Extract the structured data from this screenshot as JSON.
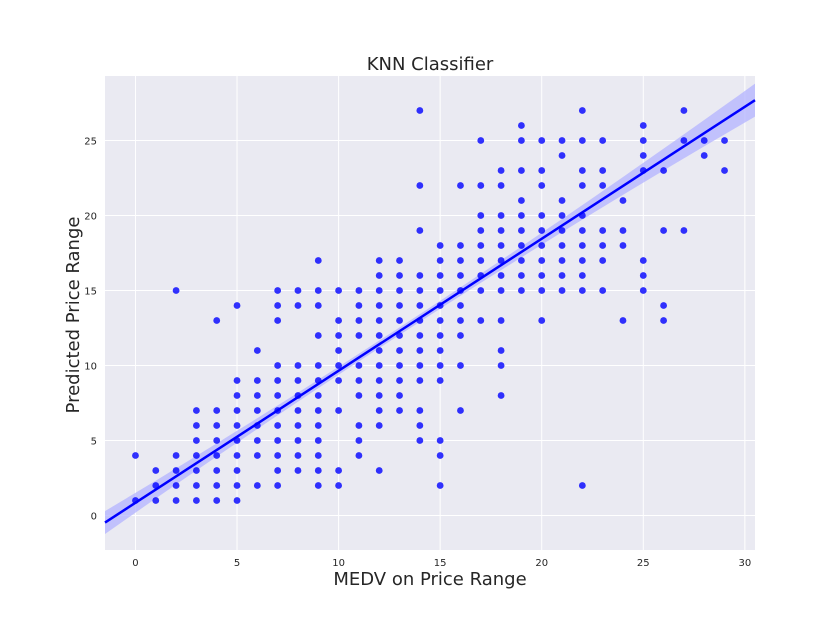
{
  "chart_data": {
    "type": "scatter",
    "title": "KNN Classifier",
    "xlabel": "MEDV on Price Range",
    "ylabel": "Predicted Price Range",
    "xlim": [
      -1.5,
      30.5
    ],
    "ylim": [
      -2.3,
      29.3
    ],
    "xticks": [
      0,
      5,
      10,
      15,
      20,
      25,
      30
    ],
    "yticks": [
      0,
      5,
      10,
      15,
      20,
      25
    ],
    "grid": true,
    "point_color": "#0000ff",
    "line_color": "#0000ff",
    "band_color": "#b3b3ff",
    "background": "#eaeaf2",
    "regression": {
      "slope": 0.88,
      "intercept": 0.85,
      "ci_halfwidth_at_ends": 1.1,
      "ci_halfwidth_center": 0.25,
      "x_center": 12.5
    },
    "points": [
      [
        0,
        1
      ],
      [
        0,
        4
      ],
      [
        1,
        1
      ],
      [
        1,
        2
      ],
      [
        1,
        3
      ],
      [
        2,
        1
      ],
      [
        2,
        2
      ],
      [
        2,
        3
      ],
      [
        2,
        4
      ],
      [
        2,
        15
      ],
      [
        3,
        1
      ],
      [
        3,
        2
      ],
      [
        3,
        3
      ],
      [
        3,
        4
      ],
      [
        3,
        5
      ],
      [
        3,
        6
      ],
      [
        3,
        7
      ],
      [
        4,
        1
      ],
      [
        4,
        2
      ],
      [
        4,
        3
      ],
      [
        4,
        4
      ],
      [
        4,
        5
      ],
      [
        4,
        6
      ],
      [
        4,
        7
      ],
      [
        4,
        13
      ],
      [
        5,
        1
      ],
      [
        5,
        2
      ],
      [
        5,
        3
      ],
      [
        5,
        4
      ],
      [
        5,
        5
      ],
      [
        5,
        6
      ],
      [
        5,
        7
      ],
      [
        5,
        8
      ],
      [
        5,
        9
      ],
      [
        5,
        14
      ],
      [
        6,
        2
      ],
      [
        6,
        4
      ],
      [
        6,
        5
      ],
      [
        6,
        6
      ],
      [
        6,
        7
      ],
      [
        6,
        8
      ],
      [
        6,
        9
      ],
      [
        6,
        11
      ],
      [
        7,
        2
      ],
      [
        7,
        3
      ],
      [
        7,
        4
      ],
      [
        7,
        5
      ],
      [
        7,
        6
      ],
      [
        7,
        7
      ],
      [
        7,
        8
      ],
      [
        7,
        9
      ],
      [
        7,
        10
      ],
      [
        7,
        13
      ],
      [
        7,
        14
      ],
      [
        7,
        15
      ],
      [
        8,
        3
      ],
      [
        8,
        4
      ],
      [
        8,
        5
      ],
      [
        8,
        6
      ],
      [
        8,
        7
      ],
      [
        8,
        8
      ],
      [
        8,
        9
      ],
      [
        8,
        10
      ],
      [
        8,
        14
      ],
      [
        8,
        15
      ],
      [
        9,
        2
      ],
      [
        9,
        3
      ],
      [
        9,
        4
      ],
      [
        9,
        5
      ],
      [
        9,
        6
      ],
      [
        9,
        7
      ],
      [
        9,
        8
      ],
      [
        9,
        9
      ],
      [
        9,
        10
      ],
      [
        9,
        12
      ],
      [
        9,
        14
      ],
      [
        9,
        15
      ],
      [
        9,
        17
      ],
      [
        10,
        2
      ],
      [
        10,
        3
      ],
      [
        10,
        7
      ],
      [
        10,
        9
      ],
      [
        10,
        10
      ],
      [
        10,
        11
      ],
      [
        10,
        12
      ],
      [
        10,
        13
      ],
      [
        10,
        15
      ],
      [
        11,
        4
      ],
      [
        11,
        5
      ],
      [
        11,
        6
      ],
      [
        11,
        8
      ],
      [
        11,
        9
      ],
      [
        11,
        10
      ],
      [
        11,
        12
      ],
      [
        11,
        13
      ],
      [
        11,
        14
      ],
      [
        11,
        15
      ],
      [
        12,
        3
      ],
      [
        12,
        6
      ],
      [
        12,
        7
      ],
      [
        12,
        8
      ],
      [
        12,
        9
      ],
      [
        12,
        10
      ],
      [
        12,
        11
      ],
      [
        12,
        12
      ],
      [
        12,
        13
      ],
      [
        12,
        14
      ],
      [
        12,
        15
      ],
      [
        12,
        16
      ],
      [
        12,
        17
      ],
      [
        13,
        7
      ],
      [
        13,
        8
      ],
      [
        13,
        9
      ],
      [
        13,
        10
      ],
      [
        13,
        11
      ],
      [
        13,
        12
      ],
      [
        13,
        13
      ],
      [
        13,
        14
      ],
      [
        13,
        15
      ],
      [
        13,
        16
      ],
      [
        13,
        17
      ],
      [
        14,
        5
      ],
      [
        14,
        6
      ],
      [
        14,
        7
      ],
      [
        14,
        9
      ],
      [
        14,
        10
      ],
      [
        14,
        11
      ],
      [
        14,
        12
      ],
      [
        14,
        13
      ],
      [
        14,
        14
      ],
      [
        14,
        15
      ],
      [
        14,
        16
      ],
      [
        14,
        19
      ],
      [
        14,
        22
      ],
      [
        14,
        27
      ],
      [
        15,
        2
      ],
      [
        15,
        4
      ],
      [
        15,
        5
      ],
      [
        15,
        9
      ],
      [
        15,
        10
      ],
      [
        15,
        11
      ],
      [
        15,
        12
      ],
      [
        15,
        13
      ],
      [
        15,
        14
      ],
      [
        15,
        15
      ],
      [
        15,
        16
      ],
      [
        15,
        17
      ],
      [
        15,
        18
      ],
      [
        16,
        7
      ],
      [
        16,
        10
      ],
      [
        16,
        12
      ],
      [
        16,
        13
      ],
      [
        16,
        14
      ],
      [
        16,
        15
      ],
      [
        16,
        16
      ],
      [
        16,
        17
      ],
      [
        16,
        18
      ],
      [
        16,
        22
      ],
      [
        17,
        13
      ],
      [
        17,
        15
      ],
      [
        17,
        16
      ],
      [
        17,
        17
      ],
      [
        17,
        18
      ],
      [
        17,
        19
      ],
      [
        17,
        20
      ],
      [
        17,
        22
      ],
      [
        17,
        25
      ],
      [
        18,
        8
      ],
      [
        18,
        10
      ],
      [
        18,
        11
      ],
      [
        18,
        13
      ],
      [
        18,
        15
      ],
      [
        18,
        16
      ],
      [
        18,
        17
      ],
      [
        18,
        18
      ],
      [
        18,
        19
      ],
      [
        18,
        20
      ],
      [
        18,
        22
      ],
      [
        18,
        23
      ],
      [
        19,
        15
      ],
      [
        19,
        16
      ],
      [
        19,
        17
      ],
      [
        19,
        18
      ],
      [
        19,
        19
      ],
      [
        19,
        20
      ],
      [
        19,
        21
      ],
      [
        19,
        23
      ],
      [
        19,
        25
      ],
      [
        19,
        26
      ],
      [
        20,
        13
      ],
      [
        20,
        15
      ],
      [
        20,
        16
      ],
      [
        20,
        17
      ],
      [
        20,
        18
      ],
      [
        20,
        19
      ],
      [
        20,
        20
      ],
      [
        20,
        22
      ],
      [
        20,
        23
      ],
      [
        20,
        25
      ],
      [
        21,
        15
      ],
      [
        21,
        16
      ],
      [
        21,
        17
      ],
      [
        21,
        18
      ],
      [
        21,
        19
      ],
      [
        21,
        20
      ],
      [
        21,
        21
      ],
      [
        21,
        24
      ],
      [
        21,
        25
      ],
      [
        22,
        2
      ],
      [
        22,
        15
      ],
      [
        22,
        16
      ],
      [
        22,
        17
      ],
      [
        22,
        18
      ],
      [
        22,
        19
      ],
      [
        22,
        20
      ],
      [
        22,
        22
      ],
      [
        22,
        23
      ],
      [
        22,
        25
      ],
      [
        22,
        27
      ],
      [
        23,
        15
      ],
      [
        23,
        17
      ],
      [
        23,
        18
      ],
      [
        23,
        19
      ],
      [
        23,
        22
      ],
      [
        23,
        23
      ],
      [
        23,
        25
      ],
      [
        24,
        13
      ],
      [
        24,
        18
      ],
      [
        24,
        19
      ],
      [
        24,
        21
      ],
      [
        25,
        15
      ],
      [
        25,
        16
      ],
      [
        25,
        17
      ],
      [
        25,
        23
      ],
      [
        25,
        24
      ],
      [
        25,
        25
      ],
      [
        25,
        26
      ],
      [
        26,
        13
      ],
      [
        26,
        14
      ],
      [
        26,
        19
      ],
      [
        26,
        23
      ],
      [
        27,
        19
      ],
      [
        27,
        25
      ],
      [
        27,
        27
      ],
      [
        28,
        24
      ],
      [
        28,
        25
      ],
      [
        29,
        23
      ],
      [
        29,
        25
      ]
    ]
  }
}
